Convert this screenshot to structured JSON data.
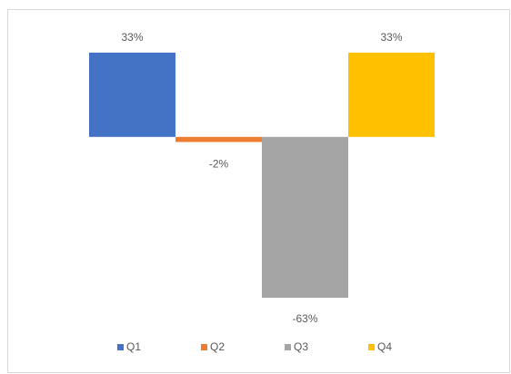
{
  "chart_data": {
    "type": "bar",
    "categories": [
      null
    ],
    "series": [
      {
        "name": "Q1",
        "color": "#4472c4",
        "values": [
          33
        ],
        "value_labels": [
          "33%"
        ]
      },
      {
        "name": "Q2",
        "color": "#ed7d31",
        "values": [
          -2
        ],
        "value_labels": [
          "-2%"
        ]
      },
      {
        "name": "Q3",
        "color": "#a5a5a5",
        "values": [
          -63
        ],
        "value_labels": [
          "-63%"
        ]
      },
      {
        "name": "Q4",
        "color": "#ffc000",
        "values": [
          33
        ],
        "value_labels": [
          "33%"
        ]
      }
    ],
    "legend": "bottom"
  }
}
